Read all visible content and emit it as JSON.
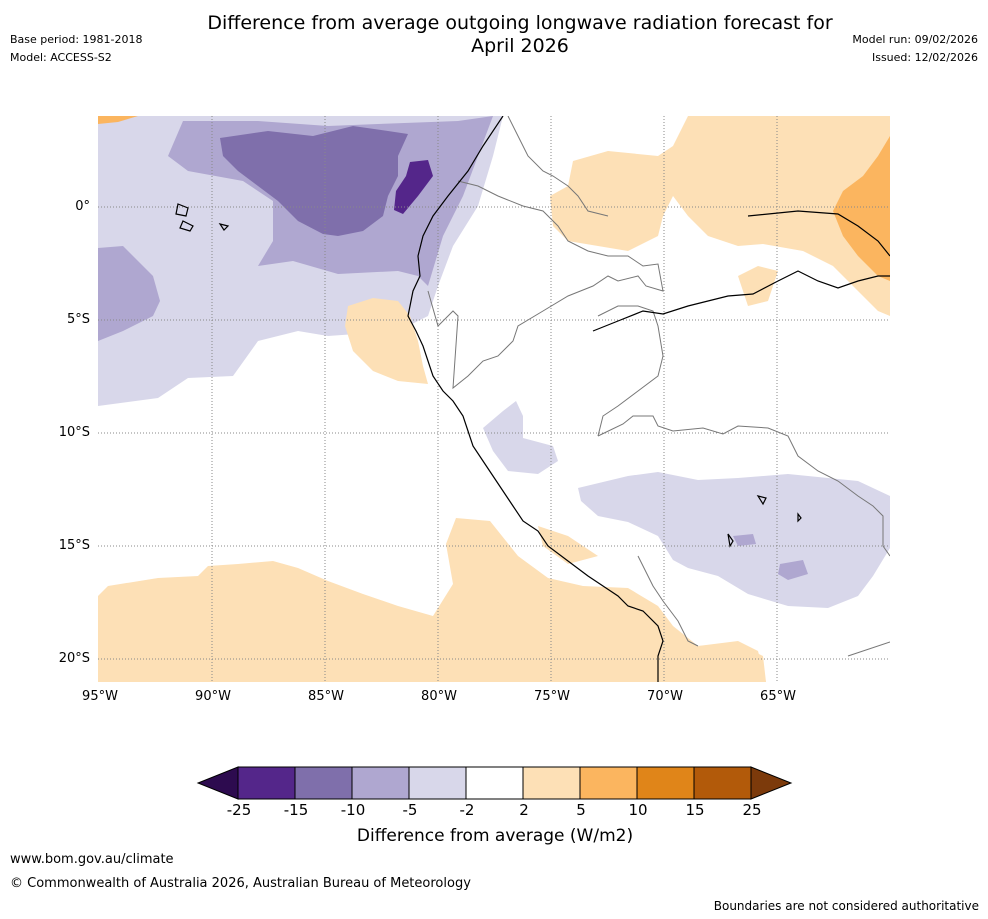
{
  "title": "Difference from average outgoing longwave radiation forecast for\nApril 2026",
  "meta_left": [
    "Base period: 1981-2018",
    "Model: ACCESS-S2"
  ],
  "meta_right": [
    "Model run: 09/02/2026",
    "Issued: 12/02/2026"
  ],
  "lat_labels": [
    "0°",
    "5°S",
    "10°S",
    "15°S",
    "20°S"
  ],
  "lon_labels": [
    "95°W",
    "90°W",
    "85°W",
    "80°W",
    "75°W",
    "70°W",
    "65°W"
  ],
  "colorbar": {
    "title": "Difference from average (W/m2)",
    "ticks": [
      "-25",
      "-15",
      "-10",
      "-5",
      "-2",
      "2",
      "5",
      "10",
      "15",
      "25"
    ],
    "colors": [
      "#2d0b4f",
      "#54268a",
      "#7f6fab",
      "#afa7d0",
      "#d8d7ea",
      "#ffffff",
      "#fde0b6",
      "#fbb55f",
      "#e08519",
      "#b25a0a",
      "#7c3a0b"
    ]
  },
  "footer": {
    "website": "www.bom.gov.au/climate",
    "copyright": "© Commonwealth of Australia 2026, Australian Bureau of Meteorology",
    "disclaimer": "Boundaries are not considered authoritative"
  }
}
